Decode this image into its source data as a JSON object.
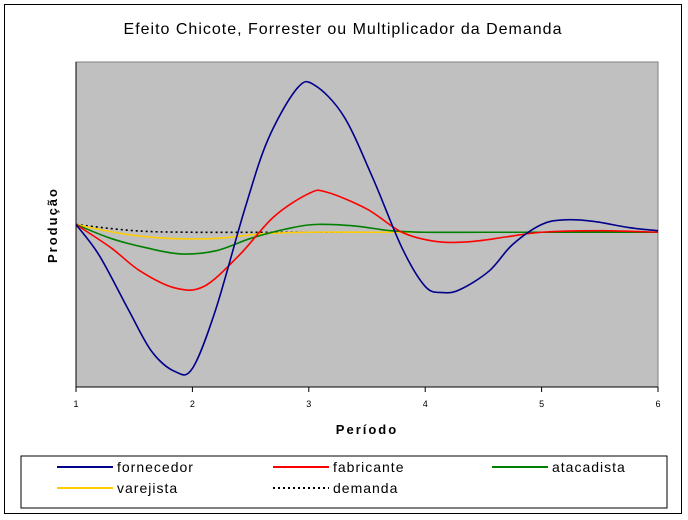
{
  "chart_data": {
    "type": "line",
    "title": "Efeito Chicote, Forrester ou Multiplicador da Demanda",
    "xlabel": "Período",
    "ylabel": "Produção",
    "xlim": [
      1,
      6
    ],
    "ylim": [
      -1.0,
      1.1
    ],
    "x_ticks": [
      "1",
      "2",
      "3",
      "4",
      "5",
      "6"
    ],
    "grid": false,
    "legend_position": "bottom",
    "plot_background": "#c0c0c0",
    "series": [
      {
        "name": "fornecedor",
        "color": "#00008b",
        "style": "solid",
        "points": [
          [
            1,
            0.05
          ],
          [
            1.2,
            -0.15
          ],
          [
            1.45,
            -0.5
          ],
          [
            1.65,
            -0.77
          ],
          [
            1.85,
            -0.9
          ],
          [
            2.0,
            -0.88
          ],
          [
            2.2,
            -0.5
          ],
          [
            2.45,
            0.15
          ],
          [
            2.65,
            0.6
          ],
          [
            2.9,
            0.93
          ],
          [
            3.05,
            0.95
          ],
          [
            3.3,
            0.75
          ],
          [
            3.55,
            0.35
          ],
          [
            3.8,
            -0.1
          ],
          [
            4.0,
            -0.35
          ],
          [
            4.15,
            -0.39
          ],
          [
            4.3,
            -0.37
          ],
          [
            4.55,
            -0.25
          ],
          [
            4.75,
            -0.08
          ],
          [
            5.0,
            0.05
          ],
          [
            5.2,
            0.08
          ],
          [
            5.45,
            0.07
          ],
          [
            5.75,
            0.03
          ],
          [
            6.0,
            0.01
          ]
        ]
      },
      {
        "name": "fabricante",
        "color": "#ff0000",
        "style": "solid",
        "points": [
          [
            1,
            0.05
          ],
          [
            1.3,
            -0.1
          ],
          [
            1.55,
            -0.25
          ],
          [
            1.85,
            -0.36
          ],
          [
            2.1,
            -0.35
          ],
          [
            2.4,
            -0.15
          ],
          [
            2.7,
            0.1
          ],
          [
            3.0,
            0.25
          ],
          [
            3.15,
            0.26
          ],
          [
            3.5,
            0.15
          ],
          [
            3.8,
            0.0
          ],
          [
            4.1,
            -0.06
          ],
          [
            4.4,
            -0.06
          ],
          [
            4.7,
            -0.03
          ],
          [
            5.0,
            0.0
          ],
          [
            5.5,
            0.01
          ],
          [
            6.0,
            0.0
          ]
        ]
      },
      {
        "name": "atacadista",
        "color": "#008000",
        "style": "solid",
        "points": [
          [
            1,
            0.05
          ],
          [
            1.3,
            -0.04
          ],
          [
            1.6,
            -0.1
          ],
          [
            1.9,
            -0.14
          ],
          [
            2.2,
            -0.12
          ],
          [
            2.5,
            -0.04
          ],
          [
            2.8,
            0.02
          ],
          [
            3.05,
            0.05
          ],
          [
            3.4,
            0.04
          ],
          [
            3.7,
            0.01
          ],
          [
            4.0,
            0.0
          ],
          [
            4.5,
            0.0
          ],
          [
            5.0,
            0.0
          ],
          [
            6.0,
            0.0
          ]
        ]
      },
      {
        "name": "varejista",
        "color": "#ffcc00",
        "style": "solid",
        "points": [
          [
            1,
            0.05
          ],
          [
            1.4,
            -0.01
          ],
          [
            1.8,
            -0.04
          ],
          [
            2.2,
            -0.04
          ],
          [
            2.6,
            -0.01
          ],
          [
            3.0,
            0.0
          ],
          [
            3.5,
            0.0
          ],
          [
            4.0,
            0.0
          ],
          [
            5.0,
            0.0
          ],
          [
            6.0,
            0.0
          ]
        ]
      },
      {
        "name": "demanda",
        "color": "#000000",
        "style": "dotted",
        "points": [
          [
            1,
            0.05
          ],
          [
            1.5,
            0.01
          ],
          [
            2.0,
            0.0
          ],
          [
            3.0,
            0.0
          ],
          [
            4.0,
            0.0
          ],
          [
            5.0,
            0.0
          ],
          [
            6.0,
            0.0
          ]
        ]
      }
    ]
  }
}
